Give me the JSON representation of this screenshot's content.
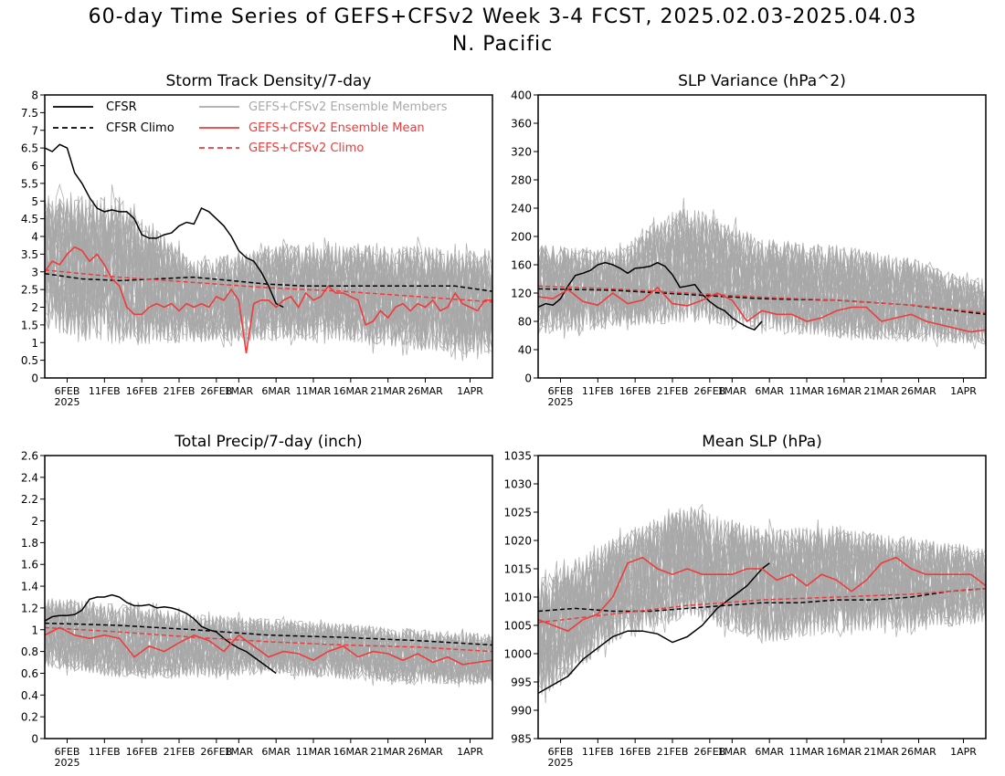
{
  "figure": {
    "title_line1": "60-day Time Series of GEFS+CFSv2 Week 3-4 FCST, 2025.02.03-2025.04.03",
    "title_line2": "N. Pacific",
    "xtick_labels": [
      "6FEB",
      "11FEB",
      "16FEB",
      "21FEB",
      "26FEB",
      "1MAR",
      "6MAR",
      "11MAR",
      "16MAR",
      "21MAR",
      "26MAR",
      "1APR"
    ],
    "xtick_year": "2025"
  },
  "legend": {
    "cfsr": "CFSR",
    "cfsr_climo": "CFSR Climo",
    "members": "GEFS+CFSv2 Ensemble Members",
    "mean": "GEFS+CFSv2 Ensemble Mean",
    "climo": "GEFS+CFSv2 Climo"
  },
  "colors": {
    "cfsr": "#000000",
    "members": "#a9a9a9",
    "mean": "#ee3b3b",
    "axis": "#000000"
  },
  "chart_data": [
    {
      "type": "line",
      "title": "Storm Track Density/7-day",
      "ylim": [
        0,
        8
      ],
      "yticks": [
        0,
        0.5,
        1,
        1.5,
        2,
        2.5,
        3,
        3.5,
        4,
        4.5,
        5,
        5.5,
        6,
        6.5,
        7,
        7.5,
        8
      ],
      "x_range_days": [
        3,
        63
      ],
      "xticks_day": [
        6,
        11,
        16,
        21,
        26,
        29,
        34,
        39,
        44,
        49,
        54,
        60
      ],
      "members_band": {
        "day": [
          3,
          13,
          23,
          33,
          43,
          53,
          63
        ],
        "low": [
          1.0,
          0.5,
          0.8,
          0.8,
          0.8,
          0.5,
          0.4
        ],
        "high": [
          5.5,
          5.5,
          3.5,
          4.0,
          4.0,
          4.0,
          3.8
        ]
      },
      "series": [
        {
          "name": "CFSR",
          "x": [
            3,
            4,
            5,
            6,
            7,
            8,
            9,
            10,
            11,
            12,
            13,
            14,
            15,
            16,
            17,
            18,
            19,
            20,
            21,
            22,
            23,
            24,
            25,
            26,
            27,
            28,
            29,
            30,
            31,
            32,
            33,
            34,
            35
          ],
          "values": [
            6.5,
            6.4,
            6.6,
            6.5,
            5.8,
            5.5,
            5.1,
            4.8,
            4.7,
            4.75,
            4.7,
            4.7,
            4.5,
            4.05,
            3.95,
            3.95,
            4.05,
            4.1,
            4.3,
            4.4,
            4.35,
            4.8,
            4.7,
            4.5,
            4.3,
            4.0,
            3.6,
            3.4,
            3.3,
            3.0,
            2.6,
            2.1,
            2.0
          ]
        },
        {
          "name": "CFSR Climo",
          "x": [
            3,
            8,
            13,
            18,
            23,
            28,
            33,
            38,
            43,
            48,
            53,
            58,
            63
          ],
          "values": [
            2.95,
            2.8,
            2.75,
            2.8,
            2.85,
            2.75,
            2.65,
            2.6,
            2.6,
            2.6,
            2.6,
            2.6,
            2.45
          ]
        },
        {
          "name": "GEFS+CFSv2 Ensemble Mean",
          "x": [
            3,
            4,
            5,
            6,
            7,
            8,
            9,
            10,
            11,
            12,
            13,
            14,
            15,
            16,
            17,
            18,
            19,
            20,
            21,
            22,
            23,
            24,
            25,
            26,
            27,
            28,
            29,
            30,
            31,
            32,
            33,
            34,
            35,
            36,
            37,
            38,
            39,
            40,
            41,
            42,
            43,
            44,
            45,
            46,
            47,
            48,
            49,
            50,
            51,
            52,
            53,
            54,
            55,
            56,
            57,
            58,
            59,
            60,
            61,
            62,
            63
          ],
          "values": [
            3.0,
            3.3,
            3.2,
            3.5,
            3.7,
            3.6,
            3.3,
            3.5,
            3.2,
            2.8,
            2.6,
            2.0,
            1.8,
            1.8,
            2.0,
            2.1,
            2.0,
            2.1,
            1.9,
            2.1,
            2.0,
            2.1,
            2.0,
            2.3,
            2.2,
            2.5,
            2.2,
            0.7,
            2.1,
            2.2,
            2.2,
            2.0,
            2.2,
            2.3,
            2.0,
            2.4,
            2.2,
            2.3,
            2.6,
            2.4,
            2.4,
            2.3,
            2.2,
            1.5,
            1.6,
            1.9,
            1.7,
            2.0,
            2.1,
            1.9,
            2.1,
            2.0,
            2.2,
            1.9,
            2.0,
            2.4,
            2.1,
            2.0,
            1.9,
            2.2,
            2.2
          ]
        },
        {
          "name": "GEFS+CFSv2 Climo",
          "x": [
            3,
            13,
            23,
            33,
            43,
            53,
            63
          ],
          "values": [
            3.05,
            2.85,
            2.7,
            2.55,
            2.45,
            2.3,
            2.15
          ]
        }
      ]
    },
    {
      "type": "line",
      "title": "SLP Variance (hPa^2)",
      "ylim": [
        0,
        400
      ],
      "yticks": [
        0,
        40,
        80,
        120,
        160,
        200,
        240,
        280,
        320,
        360,
        400
      ],
      "x_range_days": [
        3,
        63
      ],
      "xticks_day": [
        6,
        11,
        16,
        21,
        26,
        29,
        34,
        39,
        44,
        49,
        54,
        60
      ],
      "members_band": {
        "day": [
          3,
          13,
          23,
          33,
          43,
          53,
          63
        ],
        "low": [
          50,
          60,
          65,
          55,
          45,
          40,
          40
        ],
        "high": [
          200,
          190,
          260,
          210,
          200,
          180,
          140
        ]
      },
      "series": [
        {
          "name": "CFSR",
          "x": [
            3,
            4,
            5,
            6,
            7,
            8,
            9,
            10,
            11,
            12,
            13,
            14,
            15,
            16,
            17,
            18,
            19,
            20,
            21,
            22,
            23,
            24,
            25,
            26,
            27,
            28,
            29,
            30,
            31,
            32,
            33
          ],
          "values": [
            100,
            105,
            103,
            112,
            130,
            145,
            148,
            152,
            160,
            163,
            160,
            155,
            148,
            155,
            156,
            158,
            163,
            158,
            146,
            128,
            130,
            132,
            118,
            108,
            100,
            95,
            85,
            78,
            72,
            68,
            80
          ]
        },
        {
          "name": "CFSR Climo",
          "x": [
            3,
            13,
            23,
            33,
            43,
            53,
            63
          ],
          "values": [
            126,
            124,
            118,
            112,
            110,
            103,
            90
          ]
        },
        {
          "name": "GEFS+CFSv2 Ensemble Mean",
          "x": [
            3,
            5,
            7,
            9,
            11,
            13,
            15,
            17,
            19,
            21,
            23,
            25,
            27,
            29,
            31,
            33,
            35,
            37,
            39,
            41,
            43,
            45,
            47,
            49,
            51,
            53,
            55,
            57,
            59,
            61,
            63
          ],
          "values": [
            115,
            112,
            125,
            108,
            103,
            120,
            105,
            110,
            128,
            105,
            102,
            110,
            120,
            110,
            80,
            95,
            90,
            90,
            80,
            85,
            95,
            100,
            100,
            80,
            85,
            90,
            80,
            75,
            70,
            65,
            68
          ]
        },
        {
          "name": "GEFS+CFSv2 Climo",
          "x": [
            3,
            13,
            23,
            33,
            43,
            53,
            63
          ],
          "values": [
            130,
            126,
            120,
            114,
            110,
            103,
            92
          ]
        }
      ]
    },
    {
      "type": "line",
      "title": "Total Precip/7-day (inch)",
      "ylim": [
        0,
        2.6
      ],
      "yticks": [
        0,
        0.2,
        0.4,
        0.6,
        0.8,
        1,
        1.2,
        1.4,
        1.6,
        1.8,
        2,
        2.2,
        2.4,
        2.6
      ],
      "x_range_days": [
        3,
        63
      ],
      "xticks_day": [
        6,
        11,
        16,
        21,
        26,
        29,
        34,
        39,
        44,
        49,
        54,
        60
      ],
      "members_band": {
        "day": [
          3,
          13,
          23,
          33,
          43,
          53,
          63
        ],
        "low": [
          0.6,
          0.5,
          0.5,
          0.55,
          0.5,
          0.45,
          0.45
        ],
        "high": [
          1.35,
          1.3,
          1.2,
          1.15,
          1.1,
          1.05,
          1.0
        ]
      },
      "series": [
        {
          "name": "CFSR",
          "x": [
            3,
            4,
            5,
            6,
            7,
            8,
            9,
            10,
            11,
            12,
            13,
            14,
            15,
            16,
            17,
            18,
            19,
            20,
            21,
            22,
            23,
            24,
            25,
            26,
            27,
            28,
            29,
            30,
            31,
            32,
            33,
            34
          ],
          "values": [
            1.08,
            1.12,
            1.13,
            1.13,
            1.14,
            1.18,
            1.28,
            1.3,
            1.3,
            1.32,
            1.3,
            1.25,
            1.22,
            1.22,
            1.23,
            1.2,
            1.21,
            1.2,
            1.18,
            1.15,
            1.1,
            1.03,
            1.0,
            0.98,
            0.92,
            0.87,
            0.83,
            0.8,
            0.75,
            0.7,
            0.65,
            0.6
          ]
        },
        {
          "name": "CFSR Climo",
          "x": [
            3,
            13,
            23,
            33,
            43,
            53,
            63
          ],
          "values": [
            1.06,
            1.04,
            1.0,
            0.95,
            0.93,
            0.9,
            0.86
          ]
        },
        {
          "name": "GEFS+CFSv2 Ensemble Mean",
          "x": [
            3,
            5,
            7,
            9,
            11,
            13,
            15,
            17,
            19,
            21,
            23,
            25,
            27,
            29,
            31,
            33,
            35,
            37,
            39,
            41,
            43,
            45,
            47,
            49,
            51,
            53,
            55,
            57,
            59,
            61,
            63
          ],
          "values": [
            0.95,
            1.02,
            0.95,
            0.92,
            0.95,
            0.92,
            0.75,
            0.85,
            0.8,
            0.88,
            0.95,
            0.9,
            0.8,
            0.95,
            0.85,
            0.75,
            0.8,
            0.78,
            0.72,
            0.8,
            0.85,
            0.75,
            0.8,
            0.78,
            0.72,
            0.78,
            0.7,
            0.75,
            0.68,
            0.7,
            0.72
          ]
        },
        {
          "name": "GEFS+CFSv2 Climo",
          "x": [
            3,
            13,
            23,
            33,
            43,
            53,
            63
          ],
          "values": [
            1.02,
            0.98,
            0.93,
            0.89,
            0.86,
            0.84,
            0.8
          ]
        }
      ]
    },
    {
      "type": "line",
      "title": "Mean SLP (hPa)",
      "ylim": [
        985,
        1035
      ],
      "yticks": [
        985,
        990,
        995,
        1000,
        1005,
        1010,
        1015,
        1020,
        1025,
        1030,
        1035
      ],
      "x_range_days": [
        3,
        63
      ],
      "xticks_day": [
        6,
        11,
        16,
        21,
        26,
        29,
        34,
        39,
        44,
        49,
        54,
        60
      ],
      "members_band": {
        "day": [
          3,
          13,
          23,
          33,
          43,
          53,
          63
        ],
        "low": [
          990,
          1000,
          1005,
          1000,
          1002,
          1003,
          1004
        ],
        "high": [
          1015,
          1022,
          1028,
          1024,
          1024,
          1022,
          1020
        ]
      },
      "series": [
        {
          "name": "CFSR",
          "x": [
            3,
            5,
            7,
            9,
            11,
            13,
            15,
            17,
            19,
            21,
            23,
            25,
            27,
            29,
            31,
            33,
            34
          ],
          "values": [
            993,
            994.5,
            996,
            999,
            1001,
            1003,
            1004,
            1004,
            1003.5,
            1002,
            1003,
            1005,
            1008,
            1010,
            1012,
            1015,
            1016
          ]
        },
        {
          "name": "CFSR Climo",
          "x": [
            3,
            8,
            13,
            18,
            23,
            28,
            33,
            38,
            43,
            48,
            53,
            58,
            63
          ],
          "values": [
            1007.5,
            1008,
            1007.5,
            1007.5,
            1008,
            1008.5,
            1009,
            1009,
            1009.5,
            1009.5,
            1010,
            1011,
            1011.5
          ]
        },
        {
          "name": "GEFS+CFSv2 Ensemble Mean",
          "x": [
            3,
            5,
            7,
            9,
            11,
            13,
            15,
            17,
            19,
            21,
            23,
            25,
            27,
            29,
            31,
            33,
            35,
            37,
            39,
            41,
            43,
            45,
            47,
            49,
            51,
            53,
            55,
            57,
            59,
            61,
            63
          ],
          "values": [
            1006,
            1005,
            1004,
            1006,
            1007,
            1010,
            1016,
            1017,
            1015,
            1014,
            1015,
            1014,
            1014,
            1014,
            1015,
            1015,
            1013,
            1014,
            1012,
            1014,
            1013,
            1011,
            1013,
            1016,
            1017,
            1015,
            1014,
            1014,
            1014,
            1014,
            1012
          ]
        },
        {
          "name": "GEFS+CFSv2 Climo",
          "x": [
            3,
            13,
            23,
            33,
            43,
            53,
            63
          ],
          "values": [
            1005.5,
            1007,
            1008.5,
            1009.5,
            1010,
            1010.5,
            1011.5
          ]
        }
      ]
    }
  ]
}
